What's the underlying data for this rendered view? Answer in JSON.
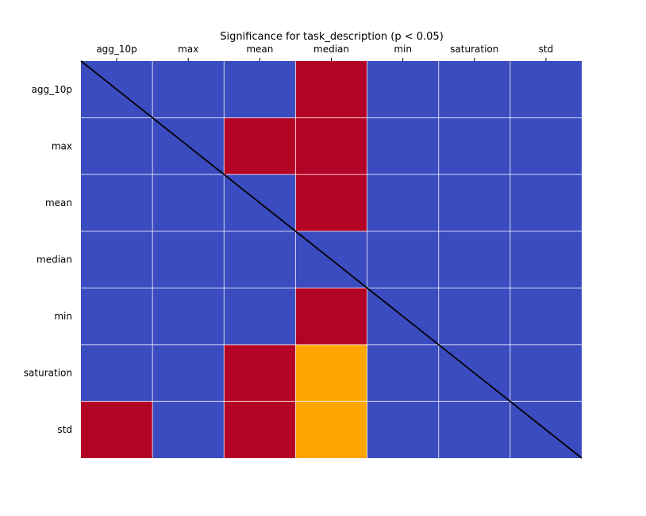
{
  "chart_data": {
    "type": "heatmap",
    "title": "Significance for task_description (p < 0.05)",
    "x_categories": [
      "agg_10p",
      "max",
      "mean",
      "median",
      "min",
      "saturation",
      "std"
    ],
    "y_categories": [
      "agg_10p",
      "max",
      "mean",
      "median",
      "min",
      "saturation",
      "std"
    ],
    "x_axis_position": "top",
    "diagonal_line": true,
    "grid": true,
    "legend": "none",
    "values": [
      [
        0,
        0,
        0,
        1,
        0,
        0,
        0
      ],
      [
        0,
        0,
        1,
        1,
        0,
        0,
        0
      ],
      [
        0,
        0,
        0,
        1,
        0,
        0,
        0
      ],
      [
        0,
        0,
        0,
        0,
        0,
        0,
        0
      ],
      [
        0,
        0,
        0,
        1,
        0,
        0,
        0
      ],
      [
        0,
        0,
        1,
        2,
        0,
        0,
        0
      ],
      [
        1,
        0,
        1,
        2,
        0,
        0,
        0
      ]
    ],
    "colors": {
      "0": "#3b4cc0",
      "1": "#b40426",
      "2": "#ffa500"
    },
    "grid_color": "#ffffff",
    "diagonal_color": "#000000"
  }
}
